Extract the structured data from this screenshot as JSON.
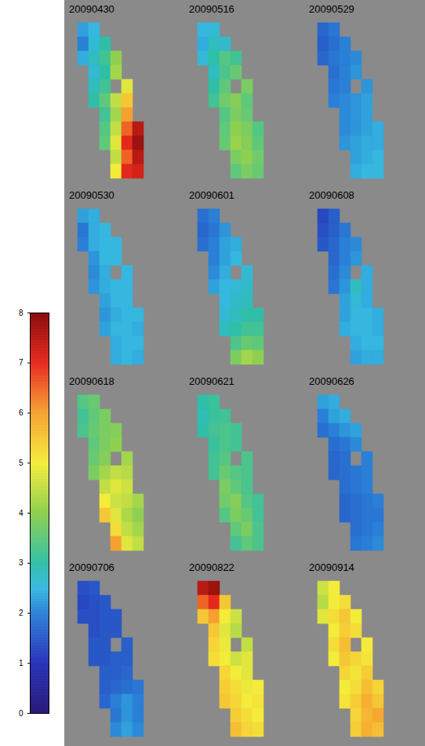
{
  "chart_data": {
    "type": "heatmap",
    "panels": [
      {
        "title": "20090430",
        "cells": [
          [
            2.3,
            2.5,
            null,
            null,
            null,
            null
          ],
          [
            2.0,
            2.6,
            3.0,
            null,
            null,
            null
          ],
          [
            2.4,
            2.8,
            3.2,
            4.0,
            null,
            null
          ],
          [
            null,
            2.6,
            3.0,
            4.2,
            null,
            null
          ],
          [
            null,
            2.8,
            3.2,
            null,
            4.8,
            null
          ],
          [
            null,
            3.0,
            3.5,
            4.5,
            5.5,
            null
          ],
          [
            null,
            null,
            3.2,
            4.2,
            6.0,
            null
          ],
          [
            null,
            null,
            3.4,
            4.5,
            6.5,
            7.5
          ],
          [
            null,
            null,
            3.5,
            4.8,
            7.0,
            7.8
          ],
          [
            null,
            null,
            null,
            4.5,
            6.5,
            7.5
          ],
          [
            null,
            null,
            null,
            5.0,
            7.0,
            7.2
          ]
        ]
      },
      {
        "title": "20090516",
        "cells": [
          [
            2.5,
            2.6,
            null,
            null,
            null,
            null
          ],
          [
            2.4,
            2.8,
            2.7,
            null,
            null,
            null
          ],
          [
            2.6,
            3.0,
            3.4,
            3.2,
            null,
            null
          ],
          [
            null,
            2.8,
            3.3,
            3.6,
            null,
            null
          ],
          [
            null,
            3.0,
            3.5,
            null,
            3.8,
            null
          ],
          [
            null,
            3.2,
            3.7,
            3.9,
            3.5,
            null
          ],
          [
            null,
            null,
            3.4,
            3.8,
            3.6,
            null
          ],
          [
            null,
            null,
            3.5,
            4.0,
            3.8,
            3.4
          ],
          [
            null,
            null,
            3.6,
            4.1,
            3.9,
            3.5
          ],
          [
            null,
            null,
            null,
            3.8,
            4.0,
            3.7
          ],
          [
            null,
            null,
            null,
            3.5,
            3.8,
            3.6
          ]
        ]
      },
      {
        "title": "20090529",
        "cells": [
          [
            1.7,
            1.9,
            null,
            null,
            null,
            null
          ],
          [
            1.6,
            1.8,
            2.0,
            null,
            null,
            null
          ],
          [
            1.7,
            1.9,
            2.0,
            2.1,
            null,
            null
          ],
          [
            null,
            1.8,
            2.0,
            2.2,
            null,
            null
          ],
          [
            null,
            1.9,
            2.0,
            null,
            2.2,
            null
          ],
          [
            null,
            2.0,
            2.1,
            2.2,
            2.3,
            null
          ],
          [
            null,
            null,
            2.1,
            2.2,
            2.3,
            null
          ],
          [
            null,
            null,
            2.1,
            2.2,
            2.3,
            2.4
          ],
          [
            null,
            null,
            2.2,
            2.3,
            2.4,
            2.4
          ],
          [
            null,
            null,
            null,
            2.3,
            2.4,
            2.5
          ],
          [
            null,
            null,
            null,
            2.4,
            2.5,
            2.5
          ]
        ]
      },
      {
        "title": "20090530",
        "cells": [
          [
            2.3,
            2.4,
            null,
            null,
            null,
            null
          ],
          [
            1.9,
            2.4,
            2.5,
            null,
            null,
            null
          ],
          [
            2.0,
            2.4,
            2.5,
            2.5,
            null,
            null
          ],
          [
            null,
            2.2,
            2.5,
            2.5,
            null,
            null
          ],
          [
            null,
            2.1,
            2.4,
            null,
            2.5,
            null
          ],
          [
            null,
            2.2,
            2.4,
            2.5,
            2.5,
            null
          ],
          [
            null,
            null,
            2.3,
            2.5,
            2.5,
            null
          ],
          [
            null,
            null,
            2.2,
            2.4,
            2.5,
            2.5
          ],
          [
            null,
            null,
            2.3,
            2.5,
            2.5,
            2.4
          ],
          [
            null,
            null,
            null,
            2.4,
            2.5,
            2.5
          ],
          [
            null,
            null,
            null,
            2.4,
            2.5,
            2.4
          ]
        ]
      },
      {
        "title": "20090601",
        "cells": [
          [
            1.8,
            2.0,
            null,
            null,
            null,
            null
          ],
          [
            1.7,
            1.9,
            2.2,
            null,
            null,
            null
          ],
          [
            1.8,
            2.0,
            2.3,
            2.4,
            null,
            null
          ],
          [
            null,
            2.0,
            2.3,
            2.5,
            null,
            null
          ],
          [
            null,
            2.1,
            2.4,
            null,
            2.6,
            null
          ],
          [
            null,
            2.3,
            2.5,
            2.6,
            2.7,
            null
          ],
          [
            null,
            null,
            2.5,
            2.7,
            2.8,
            null
          ],
          [
            null,
            null,
            2.6,
            2.8,
            3.0,
            3.0
          ],
          [
            null,
            null,
            2.8,
            3.0,
            3.2,
            3.2
          ],
          [
            null,
            null,
            null,
            3.3,
            3.6,
            3.5
          ],
          [
            null,
            null,
            null,
            3.8,
            4.2,
            4.0
          ]
        ]
      },
      {
        "title": "20090608",
        "cells": [
          [
            1.3,
            1.6,
            null,
            null,
            null,
            null
          ],
          [
            1.4,
            1.6,
            1.9,
            null,
            null,
            null
          ],
          [
            1.5,
            1.7,
            2.0,
            2.1,
            null,
            null
          ],
          [
            null,
            1.7,
            2.0,
            2.2,
            null,
            null
          ],
          [
            null,
            1.8,
            2.1,
            null,
            2.4,
            null
          ],
          [
            null,
            1.9,
            2.2,
            2.8,
            2.4,
            null
          ],
          [
            null,
            null,
            2.3,
            2.6,
            2.4,
            null
          ],
          [
            null,
            null,
            2.3,
            2.5,
            2.5,
            2.4
          ],
          [
            null,
            null,
            2.4,
            2.5,
            2.5,
            2.4
          ],
          [
            null,
            null,
            null,
            2.4,
            2.5,
            2.5
          ],
          [
            null,
            null,
            null,
            2.3,
            2.4,
            2.4
          ]
        ]
      },
      {
        "title": "20090618",
        "cells": [
          [
            3.4,
            3.6,
            null,
            null,
            null,
            null
          ],
          [
            3.2,
            3.5,
            3.8,
            null,
            null,
            null
          ],
          [
            3.3,
            3.6,
            3.8,
            3.9,
            null,
            null
          ],
          [
            null,
            3.5,
            3.8,
            4.0,
            null,
            null
          ],
          [
            null,
            3.6,
            3.9,
            null,
            4.2,
            null
          ],
          [
            null,
            3.8,
            4.2,
            4.5,
            4.4,
            null
          ],
          [
            null,
            null,
            4.5,
            4.8,
            4.6,
            null
          ],
          [
            null,
            null,
            5.0,
            4.6,
            4.5,
            4.2
          ],
          [
            null,
            null,
            5.5,
            4.8,
            4.3,
            4.0
          ],
          [
            null,
            null,
            null,
            5.2,
            4.5,
            4.2
          ],
          [
            null,
            null,
            null,
            6.0,
            4.8,
            4.5
          ]
        ]
      },
      {
        "title": "20090621",
        "cells": [
          [
            3.0,
            3.1,
            null,
            null,
            null,
            null
          ],
          [
            2.9,
            3.1,
            3.2,
            null,
            null,
            null
          ],
          [
            3.0,
            3.2,
            3.3,
            3.2,
            null,
            null
          ],
          [
            null,
            3.1,
            3.3,
            3.2,
            null,
            null
          ],
          [
            null,
            3.2,
            3.4,
            null,
            3.3,
            null
          ],
          [
            null,
            3.2,
            3.6,
            3.4,
            3.3,
            null
          ],
          [
            null,
            null,
            3.8,
            3.5,
            3.3,
            null
          ],
          [
            null,
            null,
            3.7,
            3.9,
            3.4,
            3.2
          ],
          [
            null,
            null,
            3.4,
            3.8,
            3.6,
            3.2
          ],
          [
            null,
            null,
            null,
            3.5,
            3.8,
            3.3
          ],
          [
            null,
            null,
            null,
            3.2,
            3.5,
            3.3
          ]
        ]
      },
      {
        "title": "20090626",
        "cells": [
          [
            2.3,
            2.4,
            null,
            null,
            null,
            null
          ],
          [
            2.0,
            2.3,
            2.4,
            null,
            null,
            null
          ],
          [
            1.8,
            2.0,
            2.2,
            2.3,
            null,
            null
          ],
          [
            null,
            1.8,
            1.9,
            2.1,
            null,
            null
          ],
          [
            null,
            1.7,
            1.8,
            null,
            2.0,
            null
          ],
          [
            null,
            1.7,
            1.8,
            1.9,
            2.0,
            null
          ],
          [
            null,
            null,
            1.8,
            1.9,
            2.0,
            null
          ],
          [
            null,
            null,
            1.7,
            1.8,
            1.9,
            2.0
          ],
          [
            null,
            null,
            1.7,
            1.8,
            1.9,
            1.9
          ],
          [
            null,
            null,
            null,
            1.8,
            1.9,
            2.0
          ],
          [
            null,
            null,
            null,
            1.9,
            2.0,
            2.1
          ]
        ]
      },
      {
        "title": "20090706",
        "cells": [
          [
            1.4,
            1.5,
            null,
            null,
            null,
            null
          ],
          [
            1.3,
            1.4,
            1.5,
            null,
            null,
            null
          ],
          [
            1.4,
            1.4,
            1.5,
            1.5,
            null,
            null
          ],
          [
            null,
            1.4,
            1.5,
            1.5,
            null,
            null
          ],
          [
            null,
            1.5,
            1.5,
            null,
            1.6,
            null
          ],
          [
            null,
            1.5,
            1.5,
            1.6,
            1.6,
            null
          ],
          [
            null,
            null,
            1.6,
            1.6,
            1.7,
            null
          ],
          [
            null,
            null,
            1.6,
            1.7,
            1.8,
            1.9
          ],
          [
            null,
            null,
            1.7,
            2.0,
            2.2,
            2.0
          ],
          [
            null,
            null,
            null,
            1.9,
            2.2,
            2.0
          ],
          [
            null,
            null,
            null,
            2.1,
            2.3,
            2.1
          ]
        ]
      },
      {
        "title": "20090822",
        "cells": [
          [
            7.5,
            7.8,
            null,
            null,
            null,
            null
          ],
          [
            6.5,
            7.0,
            5.5,
            null,
            null,
            null
          ],
          [
            5.5,
            6.0,
            5.0,
            4.6,
            null,
            null
          ],
          [
            null,
            5.5,
            4.8,
            4.4,
            null,
            null
          ],
          [
            null,
            5.3,
            4.9,
            null,
            4.5,
            null
          ],
          [
            null,
            5.2,
            5.0,
            4.6,
            4.8,
            null
          ],
          [
            null,
            null,
            5.3,
            5.0,
            4.8,
            null
          ],
          [
            null,
            null,
            5.4,
            5.2,
            4.9,
            5.0
          ],
          [
            null,
            null,
            5.5,
            5.3,
            5.0,
            5.1
          ],
          [
            null,
            null,
            null,
            5.4,
            5.2,
            5.0
          ],
          [
            null,
            null,
            null,
            5.6,
            5.3,
            5.2
          ]
        ]
      },
      {
        "title": "20090914",
        "cells": [
          [
            4.6,
            5.0,
            null,
            null,
            null,
            null
          ],
          [
            4.4,
            5.0,
            5.2,
            null,
            null,
            null
          ],
          [
            4.8,
            5.2,
            5.5,
            5.0,
            null,
            null
          ],
          [
            null,
            5.0,
            5.4,
            5.2,
            null,
            null
          ],
          [
            null,
            5.2,
            5.6,
            null,
            5.0,
            null
          ],
          [
            null,
            5.0,
            5.5,
            5.3,
            5.1,
            null
          ],
          [
            null,
            null,
            5.3,
            5.1,
            5.4,
            null
          ],
          [
            null,
            null,
            5.0,
            5.2,
            5.6,
            5.3
          ],
          [
            null,
            null,
            5.1,
            5.4,
            5.8,
            5.5
          ],
          [
            null,
            null,
            null,
            5.3,
            5.7,
            5.9
          ],
          [
            null,
            null,
            null,
            5.4,
            5.8,
            5.6
          ]
        ]
      }
    ],
    "colorbar": {
      "range": [
        0,
        8
      ],
      "ticks": [
        0,
        1,
        2,
        3,
        4,
        5,
        6,
        7,
        8
      ]
    }
  }
}
